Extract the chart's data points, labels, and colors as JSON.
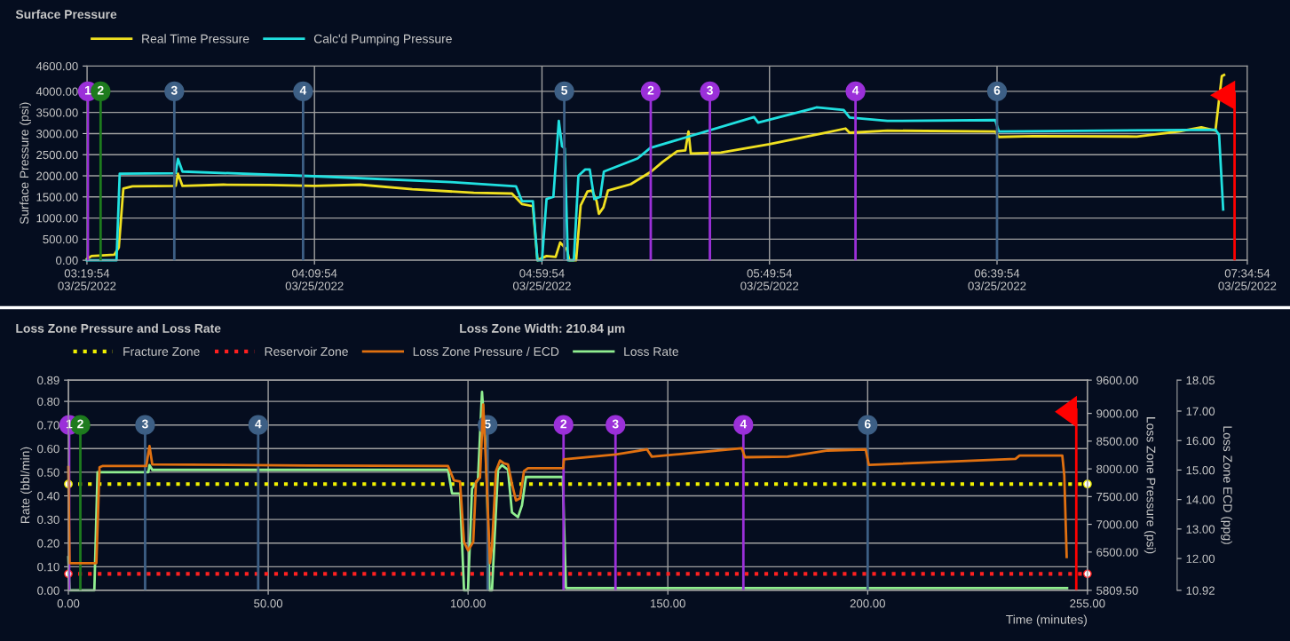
{
  "chart_data": [
    {
      "type": "line",
      "title": "Surface Pressure",
      "ylabel": "Surface Pressure (psi)",
      "xlim": [
        "2022-03-25T03:19:54",
        "2022-03-25T07:34:54"
      ],
      "xticks": [
        {
          "value": "2022-03-25T03:19:54",
          "label": "03:19:54\n03/25/2022"
        },
        {
          "value": "2022-03-25T04:09:54",
          "label": "04:09:54\n03/25/2022"
        },
        {
          "value": "2022-03-25T04:59:54",
          "label": "04:59:54\n03/25/2022"
        },
        {
          "value": "2022-03-25T05:49:54",
          "label": "05:49:54\n03/25/2022"
        },
        {
          "value": "2022-03-25T06:39:54",
          "label": "06:39:54\n03/25/2022"
        },
        {
          "value": "2022-03-25T07:34:54",
          "label": "07:34:54\n03/25/2022"
        }
      ],
      "ylim": [
        0,
        4600
      ],
      "yticks": [
        {
          "value": 0,
          "label": "0.00"
        },
        {
          "value": 500,
          "label": "500.00"
        },
        {
          "value": 1000,
          "label": "1000.00"
        },
        {
          "value": 1500,
          "label": "1500.00"
        },
        {
          "value": 2000,
          "label": "2000.00"
        },
        {
          "value": 2500,
          "label": "2500.00"
        },
        {
          "value": 3000,
          "label": "3000.00"
        },
        {
          "value": 3500,
          "label": "3500.00"
        },
        {
          "value": 4000,
          "label": "4000.00"
        },
        {
          "value": 4600,
          "label": "4600.00"
        }
      ],
      "grid": true,
      "legend": "top left",
      "series": [
        {
          "name": "Real Time Pressure",
          "color": "#f0e020",
          "x": [
            "2022-03-25T03:19:54",
            "2022-03-25T03:20:54",
            "2022-03-25T03:25:54",
            "2022-03-25T03:26:54",
            "2022-03-25T03:27:54",
            "2022-03-25T03:29:54",
            "2022-03-25T03:39:24",
            "2022-03-25T03:39:54",
            "2022-03-25T03:40:54",
            "2022-03-25T03:49:54",
            "2022-03-25T03:59:54",
            "2022-03-25T04:09:54",
            "2022-03-25T04:19:54",
            "2022-03-25T04:31:24",
            "2022-03-25T04:44:54",
            "2022-03-25T04:53:18",
            "2022-03-25T04:55:30",
            "2022-03-25T04:57:54",
            "2022-03-25T04:58:54",
            "2022-03-25T05:00:54",
            "2022-03-25T05:02:54",
            "2022-03-25T05:03:54",
            "2022-03-25T05:04:54",
            "2022-03-25T05:05:24",
            "2022-03-25T05:05:54",
            "2022-03-25T05:07:24",
            "2022-03-25T05:08:24",
            "2022-03-25T05:09:54",
            "2022-03-25T05:10:54",
            "2022-03-25T05:11:54",
            "2022-03-25T05:12:24",
            "2022-03-25T05:13:24",
            "2022-03-25T05:14:24",
            "2022-03-25T05:19:24",
            "2022-03-25T05:23:54",
            "2022-03-25T05:26:24",
            "2022-03-25T05:29:36",
            "2022-03-25T05:31:24",
            "2022-03-25T05:32:06",
            "2022-03-25T05:32:36",
            "2022-03-25T05:39:12",
            "2022-03-25T05:49:54",
            "2022-03-25T06:00:54",
            "2022-03-25T06:06:36",
            "2022-03-25T06:07:30",
            "2022-03-25T06:15:48",
            "2022-03-25T06:39:30",
            "2022-03-25T06:40:18",
            "2022-03-25T06:47:48",
            "2022-03-25T07:10:36",
            "2022-03-25T07:19:48",
            "2022-03-25T07:24:48",
            "2022-03-25T07:27:54",
            "2022-03-25T07:29:18",
            "2022-03-25T07:29:48"
          ],
          "values": [
            30,
            100,
            130,
            300,
            1700,
            1750,
            1760,
            2050,
            1760,
            1790,
            1780,
            1760,
            1790,
            1680,
            1600,
            1580,
            1330,
            1280,
            0,
            100,
            80,
            420,
            300,
            250,
            0,
            0,
            1300,
            1630,
            1650,
            1400,
            1100,
            1250,
            1650,
            1800,
            2100,
            2330,
            2580,
            2600,
            3050,
            2530,
            2550,
            2750,
            2990,
            3120,
            3020,
            3070,
            3050,
            2920,
            2940,
            2930,
            3050,
            3150,
            3070,
            4360,
            4390
          ]
        },
        {
          "name": "Calc'd Pumping Pressure",
          "color": "#20e0e0",
          "x": [
            "2022-03-25T03:19:54",
            "2022-03-25T03:26:24",
            "2022-03-25T03:27:06",
            "2022-03-25T03:39:24",
            "2022-03-25T03:39:54",
            "2022-03-25T03:40:54",
            "2022-03-25T04:09:54",
            "2022-03-25T04:39:54",
            "2022-03-25T04:54:12",
            "2022-03-25T04:55:30",
            "2022-03-25T04:57:54",
            "2022-03-25T04:58:54",
            "2022-03-25T04:59:54",
            "2022-03-25T05:00:54",
            "2022-03-25T05:02:24",
            "2022-03-25T05:03:36",
            "2022-03-25T05:04:18",
            "2022-03-25T05:04:54",
            "2022-03-25T05:05:36",
            "2022-03-25T05:06:54",
            "2022-03-25T05:07:54",
            "2022-03-25T05:09:24",
            "2022-03-25T05:10:24",
            "2022-03-25T05:11:24",
            "2022-03-25T05:12:42",
            "2022-03-25T05:13:30",
            "2022-03-25T05:20:54",
            "2022-03-25T05:23:42",
            "2022-03-25T05:46:30",
            "2022-03-25T05:47:24",
            "2022-03-25T05:59:18",
            "2022-03-25T06:00:12",
            "2022-03-25T06:06:12",
            "2022-03-25T06:07:30",
            "2022-03-25T06:15:48",
            "2022-03-25T06:39:30",
            "2022-03-25T06:40:18",
            "2022-03-25T07:27:54",
            "2022-03-25T07:28:42",
            "2022-03-25T07:29:36"
          ],
          "values": [
            0,
            0,
            2050,
            2060,
            2400,
            2100,
            1990,
            1850,
            1750,
            1400,
            1400,
            0,
            0,
            1450,
            1500,
            3300,
            2700,
            2650,
            0,
            0,
            2000,
            2150,
            2150,
            1450,
            1500,
            2100,
            2410,
            2660,
            3390,
            3260,
            3590,
            3620,
            3560,
            3380,
            3300,
            3320,
            3050,
            3090,
            2970,
            1200
          ]
        }
      ],
      "ref_lines": [
        {
          "axis": "x",
          "value": "2022-03-25T03:20:06",
          "color": "#9b30d9"
        },
        {
          "axis": "x",
          "value": "2022-03-25T03:22:54",
          "color": "#1e7b1e"
        },
        {
          "axis": "x",
          "value": "2022-03-25T03:39:06",
          "color": "#3d5f85"
        },
        {
          "axis": "x",
          "value": "2022-03-25T04:07:24",
          "color": "#3d5f85"
        },
        {
          "axis": "x",
          "value": "2022-03-25T05:04:48",
          "color": "#3d5f85"
        },
        {
          "axis": "x",
          "value": "2022-03-25T05:23:48",
          "color": "#9b30d9"
        },
        {
          "axis": "x",
          "value": "2022-03-25T05:36:48",
          "color": "#9b30d9"
        },
        {
          "axis": "x",
          "value": "2022-03-25T06:08:48",
          "color": "#9b30d9"
        },
        {
          "axis": "x",
          "value": "2022-03-25T06:39:54",
          "color": "#3d5f85"
        },
        {
          "axis": "x",
          "value": "2022-03-25T07:32:06",
          "color": "#ff0000"
        }
      ],
      "annotations": [
        {
          "text": "1",
          "x": "2022-03-25T03:20:06",
          "y": 4000
        },
        {
          "text": "2",
          "x": "2022-03-25T03:22:54",
          "y": 4000
        },
        {
          "text": "3",
          "x": "2022-03-25T03:39:06",
          "y": 4000
        },
        {
          "text": "4",
          "x": "2022-03-25T04:07:24",
          "y": 4000
        },
        {
          "text": "5",
          "x": "2022-03-25T05:04:48",
          "y": 4000
        },
        {
          "text": "2",
          "x": "2022-03-25T05:23:48",
          "y": 4000
        },
        {
          "text": "3",
          "x": "2022-03-25T05:36:48",
          "y": 4000
        },
        {
          "text": "4",
          "x": "2022-03-25T06:08:48",
          "y": 4000
        },
        {
          "text": "6",
          "x": "2022-03-25T06:39:54",
          "y": 4000
        }
      ]
    },
    {
      "type": "line",
      "title": "Loss Zone Pressure and Loss Rate",
      "subtitle": "Loss Zone Width: 210.84 µm",
      "xlabel": "Time (minutes)",
      "ylabel": "Rate (bbl/min)",
      "y2label": "Loss Zone Pressure (psi)",
      "y3label": "Loss Zone ECD (ppg)",
      "xlim": [
        0,
        255
      ],
      "xticks": [
        {
          "value": 0,
          "label": "0.00"
        },
        {
          "value": 50,
          "label": "50.00"
        },
        {
          "value": 100,
          "label": "100.00"
        },
        {
          "value": 150,
          "label": "150.00"
        },
        {
          "value": 200,
          "label": "200.00"
        },
        {
          "value": 255,
          "label": "255.00"
        }
      ],
      "ylim": [
        0,
        0.89
      ],
      "yticks": [
        {
          "value": 0,
          "label": "0.00"
        },
        {
          "value": 0.1,
          "label": "0.10"
        },
        {
          "value": 0.2,
          "label": "0.20"
        },
        {
          "value": 0.3,
          "label": "0.30"
        },
        {
          "value": 0.4,
          "label": "0.40"
        },
        {
          "value": 0.5,
          "label": "0.50"
        },
        {
          "value": 0.6,
          "label": "0.60"
        },
        {
          "value": 0.7,
          "label": "0.70"
        },
        {
          "value": 0.8,
          "label": "0.80"
        },
        {
          "value": 0.89,
          "label": "0.89"
        }
      ],
      "y2lim": [
        5809.5,
        9600
      ],
      "y2ticks": [
        {
          "value": 5809.5,
          "label": "5809.50"
        },
        {
          "value": 6500,
          "label": "6500.00"
        },
        {
          "value": 7000,
          "label": "7000.00"
        },
        {
          "value": 7500,
          "label": "7500.00"
        },
        {
          "value": 8000,
          "label": "8000.00"
        },
        {
          "value": 8500,
          "label": "8500.00"
        },
        {
          "value": 9000,
          "label": "9000.00"
        },
        {
          "value": 9600,
          "label": "9600.00"
        }
      ],
      "y3lim": [
        10.92,
        18.05
      ],
      "y3ticks": [
        {
          "value": 10.92,
          "label": "10.92"
        },
        {
          "value": 12,
          "label": "12.00"
        },
        {
          "value": 13,
          "label": "13.00"
        },
        {
          "value": 14,
          "label": "14.00"
        },
        {
          "value": 15,
          "label": "15.00"
        },
        {
          "value": 16,
          "label": "16.00"
        },
        {
          "value": 17,
          "label": "17.00"
        },
        {
          "value": 18.05,
          "label": "18.05"
        }
      ],
      "grid": true,
      "legend": "top left",
      "series": [
        {
          "name": "Fracture Zone",
          "color": "#f0f000",
          "line_style": "dotted",
          "marker": "circle",
          "x": [
            0,
            255
          ],
          "values": [
            0.45,
            0.45
          ]
        },
        {
          "name": "Reservoir Zone",
          "color": "#ff2020",
          "line_style": "dotted",
          "marker": "circle",
          "x": [
            0,
            255
          ],
          "values": [
            0.07,
            0.07
          ]
        },
        {
          "name": "Loss Zone Pressure / ECD",
          "color": "#e07010",
          "axis": "y2",
          "x": [
            0,
            0.3,
            7,
            7.8,
            8.5,
            19.5,
            20.3,
            21,
            60,
            95,
            96.5,
            98,
            99,
            100,
            101.3,
            102,
            103,
            103.8,
            104.5,
            105.5,
            106,
            107,
            108,
            109,
            110,
            111,
            112,
            113,
            114,
            115,
            123.8,
            124,
            137,
            144.8,
            146,
            168.5,
            169.3,
            180,
            190,
            199.5,
            200.3,
            237,
            238,
            248.7,
            249.2,
            249.8
          ],
          "values": [
            8030,
            6300,
            6300,
            8030,
            8050,
            8050,
            8410,
            8080,
            8060,
            8050,
            7790,
            7770,
            6680,
            6530,
            6680,
            7770,
            7840,
            9160,
            8080,
            6300,
            6600,
            7960,
            8150,
            8100,
            8080,
            7730,
            7430,
            7470,
            7960,
            8010,
            8010,
            8170,
            8260,
            8350,
            8220,
            8370,
            8210,
            8220,
            8330,
            8350,
            8070,
            8180,
            8240,
            8240,
            7880,
            6410
          ]
        },
        {
          "name": "Loss Rate",
          "color": "#90ee90",
          "x": [
            0,
            0.3,
            6.5,
            7.3,
            20,
            20.3,
            21,
            60,
            95,
            96,
            98,
            99,
            100,
            101,
            102.5,
            103.5,
            104.5,
            105.4,
            106,
            107.5,
            108.5,
            110,
            111,
            112.5,
            113.5,
            114.5,
            123.7,
            124.5,
            125,
            249.9
          ],
          "values": [
            0.14,
            0,
            0,
            0.5,
            0.5,
            0.53,
            0.51,
            0.51,
            0.51,
            0.41,
            0.41,
            0,
            0,
            0.43,
            0.47,
            0.84,
            0.59,
            0,
            0,
            0.51,
            0.53,
            0.51,
            0.33,
            0.31,
            0.36,
            0.48,
            0.48,
            0.01,
            0.01,
            0.01
          ]
        }
      ],
      "ref_lines": [
        {
          "axis": "x",
          "value": 0.2,
          "color": "#9b30d9"
        },
        {
          "axis": "x",
          "value": 3.0,
          "color": "#1e7b1e"
        },
        {
          "axis": "x",
          "value": 19.2,
          "color": "#3d5f85"
        },
        {
          "axis": "x",
          "value": 47.5,
          "color": "#3d5f85"
        },
        {
          "axis": "x",
          "value": 104.9,
          "color": "#3d5f85"
        },
        {
          "axis": "x",
          "value": 123.9,
          "color": "#9b30d9"
        },
        {
          "axis": "x",
          "value": 136.9,
          "color": "#9b30d9"
        },
        {
          "axis": "x",
          "value": 168.9,
          "color": "#9b30d9"
        },
        {
          "axis": "x",
          "value": 200,
          "color": "#3d5f85"
        },
        {
          "axis": "x",
          "value": 252.2,
          "color": "#ff0000"
        }
      ],
      "annotations": [
        {
          "text": "1",
          "x": 0.2,
          "y": 0.7
        },
        {
          "text": "2",
          "x": 3.0,
          "y": 0.7
        },
        {
          "text": "3",
          "x": 19.2,
          "y": 0.7
        },
        {
          "text": "4",
          "x": 47.5,
          "y": 0.7
        },
        {
          "text": "5",
          "x": 104.9,
          "y": 0.7
        },
        {
          "text": "2",
          "x": 123.9,
          "y": 0.7
        },
        {
          "text": "3",
          "x": 136.9,
          "y": 0.7
        },
        {
          "text": "4",
          "x": 168.9,
          "y": 0.7
        },
        {
          "text": "6",
          "x": 200,
          "y": 0.7
        }
      ]
    }
  ]
}
